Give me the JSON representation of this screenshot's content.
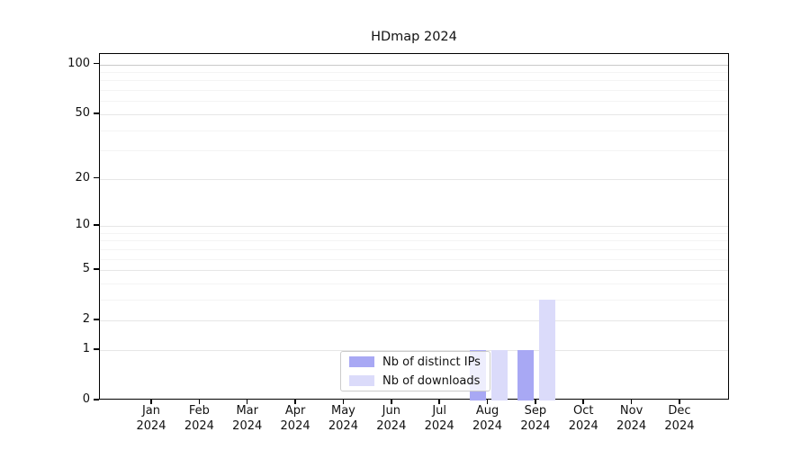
{
  "chart_data": {
    "type": "bar",
    "title": "HDmap 2024",
    "categories": [
      "Jan",
      "Feb",
      "Mar",
      "Apr",
      "May",
      "Jun",
      "Jul",
      "Aug",
      "Sep",
      "Oct",
      "Nov",
      "Dec"
    ],
    "category_year": "2024",
    "series": [
      {
        "name": "Nb of distinct IPs",
        "color": "#a8a8f4",
        "values": [
          0,
          0,
          0,
          0,
          0,
          0,
          0,
          1,
          1,
          0,
          0,
          0
        ]
      },
      {
        "name": "Nb of downloads",
        "color": "#dbdbfa",
        "values": [
          0,
          0,
          0,
          0,
          0,
          0,
          0,
          1,
          3,
          0,
          0,
          0
        ]
      }
    ],
    "yscale": "log1p",
    "ylim": [
      0,
      115
    ],
    "yticks": [
      0,
      1,
      2,
      5,
      10,
      20,
      50,
      100
    ],
    "minor_yticks": [
      3,
      4,
      6,
      7,
      8,
      9,
      30,
      40,
      60,
      70,
      80,
      90
    ],
    "grid": "both",
    "legend": {
      "location": "inside-bottom-center",
      "items": [
        "Nb of distinct IPs",
        "Nb of downloads"
      ]
    }
  },
  "colors": {
    "grid_major": "#e6e6e6",
    "grid_minor": "#f4f4f4",
    "grid_top": "#c9c9c9",
    "axis": "#000000",
    "text": "#111111",
    "legend_border": "#cccccc"
  }
}
